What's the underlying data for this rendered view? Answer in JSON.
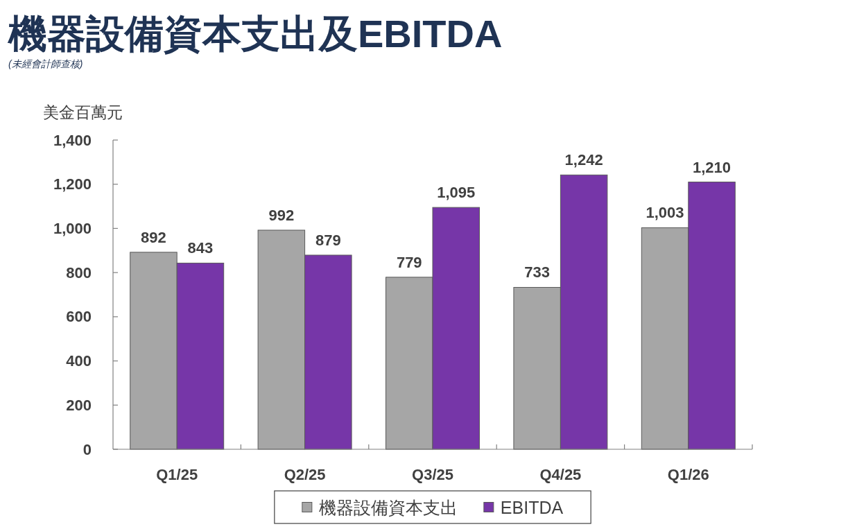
{
  "chart_data": {
    "type": "bar",
    "title": "機器設備資本支出及EBITDA",
    "subtitle": "(未經會計師查核)",
    "ylabel": "美金百萬元",
    "categories": [
      "Q1/25",
      "Q2/25",
      "Q3/25",
      "Q4/25",
      "Q1/26"
    ],
    "series": [
      {
        "name": "機器設備資本支出",
        "color": "#a6a6a6",
        "values": [
          892,
          992,
          779,
          733,
          1003
        ],
        "value_labels": [
          "892",
          "992",
          "779",
          "733",
          "1,003"
        ]
      },
      {
        "name": "EBITDA",
        "color": "#7636a8",
        "values": [
          843,
          879,
          1095,
          1242,
          1210
        ],
        "value_labels": [
          "843",
          "879",
          "1,095",
          "1,242",
          "1,210"
        ]
      }
    ],
    "ylim": [
      0,
      1400
    ],
    "yticks": [
      0,
      200,
      400,
      600,
      800,
      {
        "value": 1000,
        "label": "1,000"
      },
      {
        "value": 1200,
        "label": "1,200"
      },
      {
        "value": 1400,
        "label": "1,400"
      }
    ],
    "legend": "bottom"
  }
}
